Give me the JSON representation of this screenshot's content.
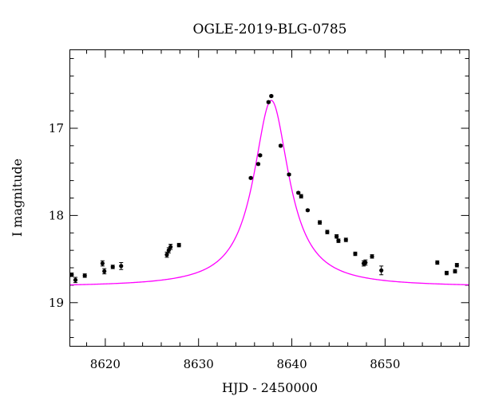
{
  "chart_data": {
    "type": "scatter",
    "title": "OGLE-2019-BLG-0785",
    "xlabel": "HJD - 2450000",
    "ylabel": "I magnitude",
    "xlim": [
      8616.2,
      8659.0
    ],
    "ylim": [
      19.5,
      16.1
    ],
    "y_inverted": true,
    "grid": false,
    "legend": "none",
    "x_ticks": [
      8620,
      8630,
      8640,
      8650
    ],
    "y_ticks": [
      17,
      18,
      19
    ],
    "colors": {
      "points": "#000000",
      "model": "#ff00ff"
    },
    "model": {
      "t0": 8637.8,
      "width_days": 2.3,
      "base_magnitude": 18.82,
      "peak_magnitude": 16.68
    },
    "observations": [
      {
        "x": 8616.4,
        "y": 18.68,
        "err": 0.02
      },
      {
        "x": 8616.8,
        "y": 18.74,
        "err": 0.03
      },
      {
        "x": 8617.8,
        "y": 18.69,
        "err": 0.02
      },
      {
        "x": 8619.7,
        "y": 18.55,
        "err": 0.03
      },
      {
        "x": 8619.9,
        "y": 18.64,
        "err": 0.03
      },
      {
        "x": 8620.8,
        "y": 18.59,
        "err": 0.02
      },
      {
        "x": 8621.7,
        "y": 18.58,
        "err": 0.04
      },
      {
        "x": 8626.6,
        "y": 18.45,
        "err": 0.03
      },
      {
        "x": 8626.8,
        "y": 18.4,
        "err": 0.03
      },
      {
        "x": 8627.0,
        "y": 18.36,
        "err": 0.03
      },
      {
        "x": 8627.9,
        "y": 18.34,
        "err": 0.02
      },
      {
        "x": 8635.6,
        "y": 17.57,
        "err": 0.01
      },
      {
        "x": 8636.4,
        "y": 17.41,
        "err": 0.01
      },
      {
        "x": 8636.6,
        "y": 17.31,
        "err": 0.01
      },
      {
        "x": 8637.5,
        "y": 16.7,
        "err": 0.01
      },
      {
        "x": 8637.8,
        "y": 16.63,
        "err": 0.01
      },
      {
        "x": 8638.8,
        "y": 17.2,
        "err": 0.01
      },
      {
        "x": 8639.7,
        "y": 17.53,
        "err": 0.01
      },
      {
        "x": 8640.7,
        "y": 17.74,
        "err": 0.01
      },
      {
        "x": 8641.0,
        "y": 17.78,
        "err": 0.02
      },
      {
        "x": 8641.7,
        "y": 17.94,
        "err": 0.01
      },
      {
        "x": 8643.0,
        "y": 18.08,
        "err": 0.02
      },
      {
        "x": 8643.8,
        "y": 18.19,
        "err": 0.02
      },
      {
        "x": 8644.8,
        "y": 18.24,
        "err": 0.02
      },
      {
        "x": 8645.0,
        "y": 18.29,
        "err": 0.02
      },
      {
        "x": 8645.8,
        "y": 18.28,
        "err": 0.02
      },
      {
        "x": 8646.8,
        "y": 18.44,
        "err": 0.02
      },
      {
        "x": 8647.7,
        "y": 18.55,
        "err": 0.03
      },
      {
        "x": 8647.9,
        "y": 18.54,
        "err": 0.03
      },
      {
        "x": 8648.6,
        "y": 18.47,
        "err": 0.02
      },
      {
        "x": 8649.6,
        "y": 18.63,
        "err": 0.05
      },
      {
        "x": 8655.6,
        "y": 18.54,
        "err": 0.02
      },
      {
        "x": 8656.6,
        "y": 18.66,
        "err": 0.02
      },
      {
        "x": 8657.5,
        "y": 18.64,
        "err": 0.02
      },
      {
        "x": 8657.7,
        "y": 18.57,
        "err": 0.02
      }
    ]
  }
}
